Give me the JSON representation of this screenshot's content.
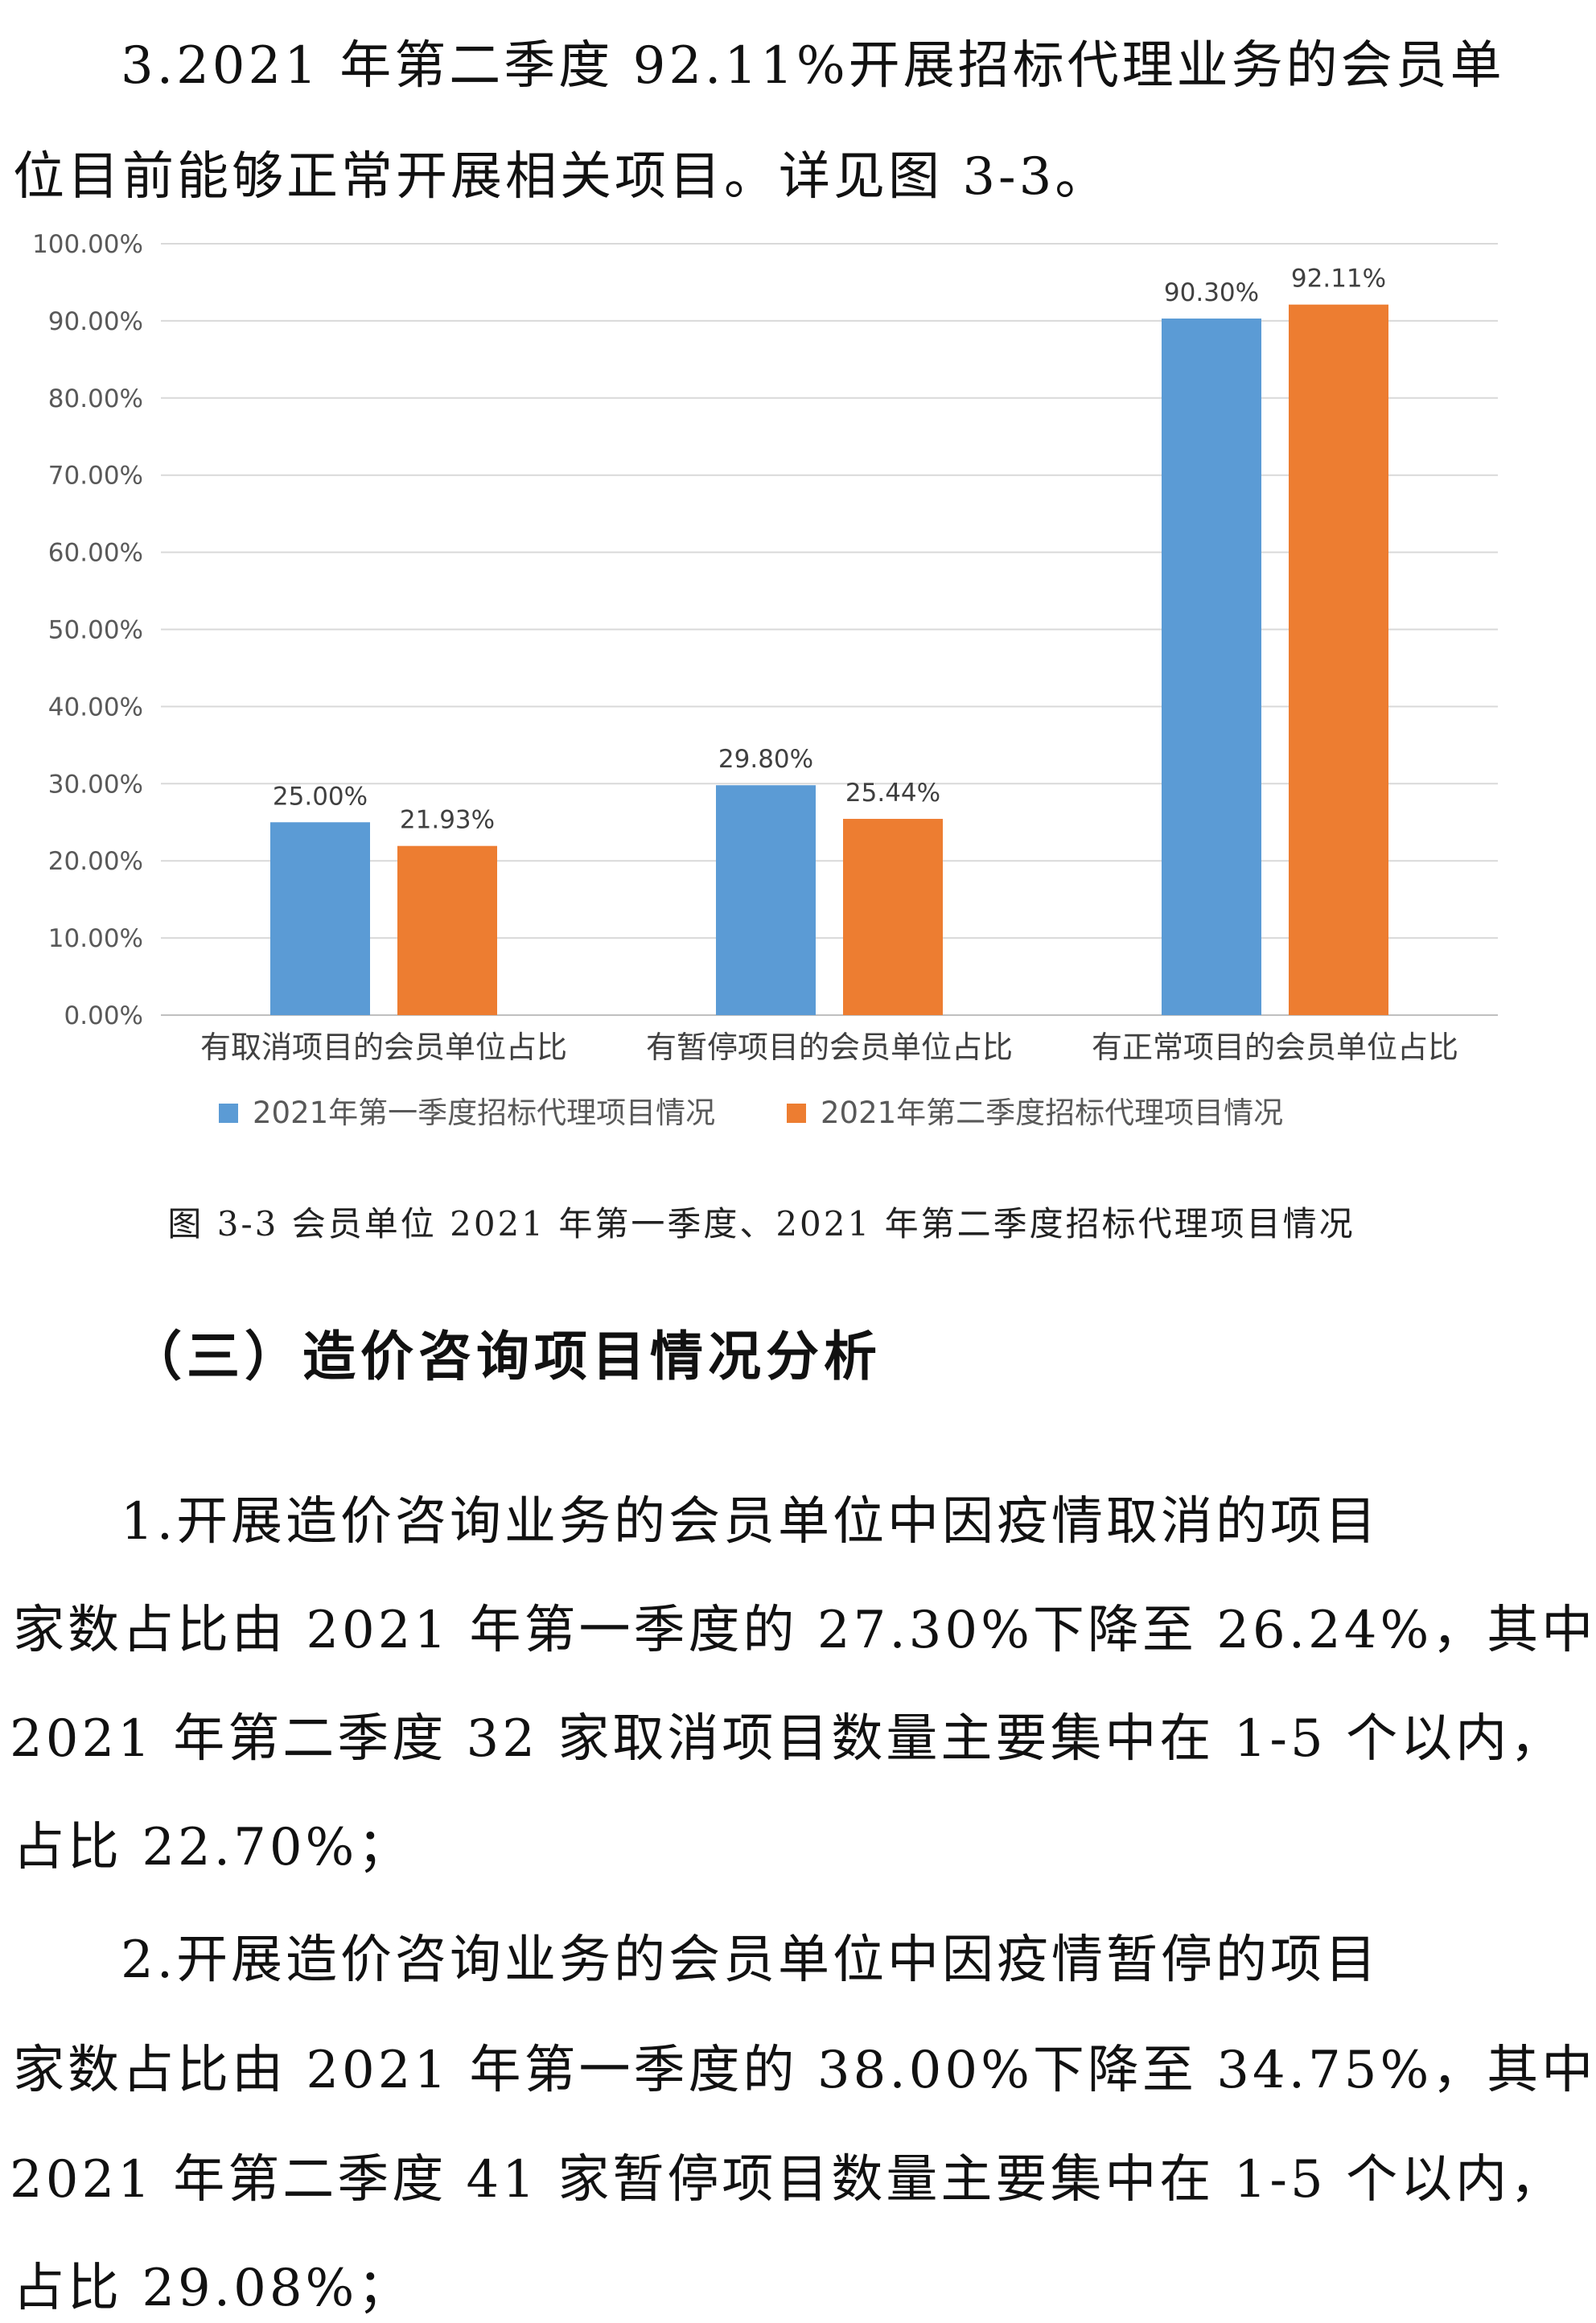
{
  "intro": {
    "line1": "3.2021 年第二季度 92.11%开展招标代理业务的会员单",
    "line2": "位目前能够正常开展相关项目。详见图 3-3。"
  },
  "chart_data": {
    "type": "bar",
    "categories": [
      "有取消项目的会员单位占比",
      "有暂停项目的会员单位占比",
      "有正常项目的会员单位占比"
    ],
    "series": [
      {
        "name": "2021年第一季度招标代理项目情况",
        "values": [
          25.0,
          29.8,
          90.3
        ],
        "labels": [
          "25.00%",
          "29.80%",
          "90.30%"
        ],
        "color": "#5B9BD5"
      },
      {
        "name": "2021年第二季度招标代理项目情况",
        "values": [
          21.93,
          25.44,
          92.11
        ],
        "labels": [
          "21.93%",
          "25.44%",
          "92.11%"
        ],
        "color": "#ED7D31"
      }
    ],
    "yticks": [
      "0.00%",
      "10.00%",
      "20.00%",
      "30.00%",
      "40.00%",
      "50.00%",
      "60.00%",
      "70.00%",
      "80.00%",
      "90.00%",
      "100.00%"
    ],
    "ylim": [
      0,
      100
    ],
    "grid": true,
    "legend": "bottom",
    "gridColor": "#D9D9D9"
  },
  "caption": "图 3-3 会员单位 2021 年第一季度、2021 年第二季度招标代理项目情况",
  "section_heading": "（三）造价咨询项目情况分析",
  "para1": {
    "line1": "1.开展造价咨询业务的会员单位中因疫情取消的项目",
    "line2": "家数占比由 2021 年第一季度的 27.30%下降至 26.24%，其中",
    "line3": "2021 年第二季度 32 家取消项目数量主要集中在 1-5 个以内，",
    "line4": "占比 22.70%；"
  },
  "para2": {
    "line1": "2.开展造价咨询业务的会员单位中因疫情暂停的项目",
    "line2": "家数占比由 2021 年第一季度的 38.00%下降至 34.75%，其中",
    "line3": "2021 年第二季度 41 家暂停项目数量主要集中在 1-5 个以内，",
    "line4": "占比 29.08%；"
  }
}
